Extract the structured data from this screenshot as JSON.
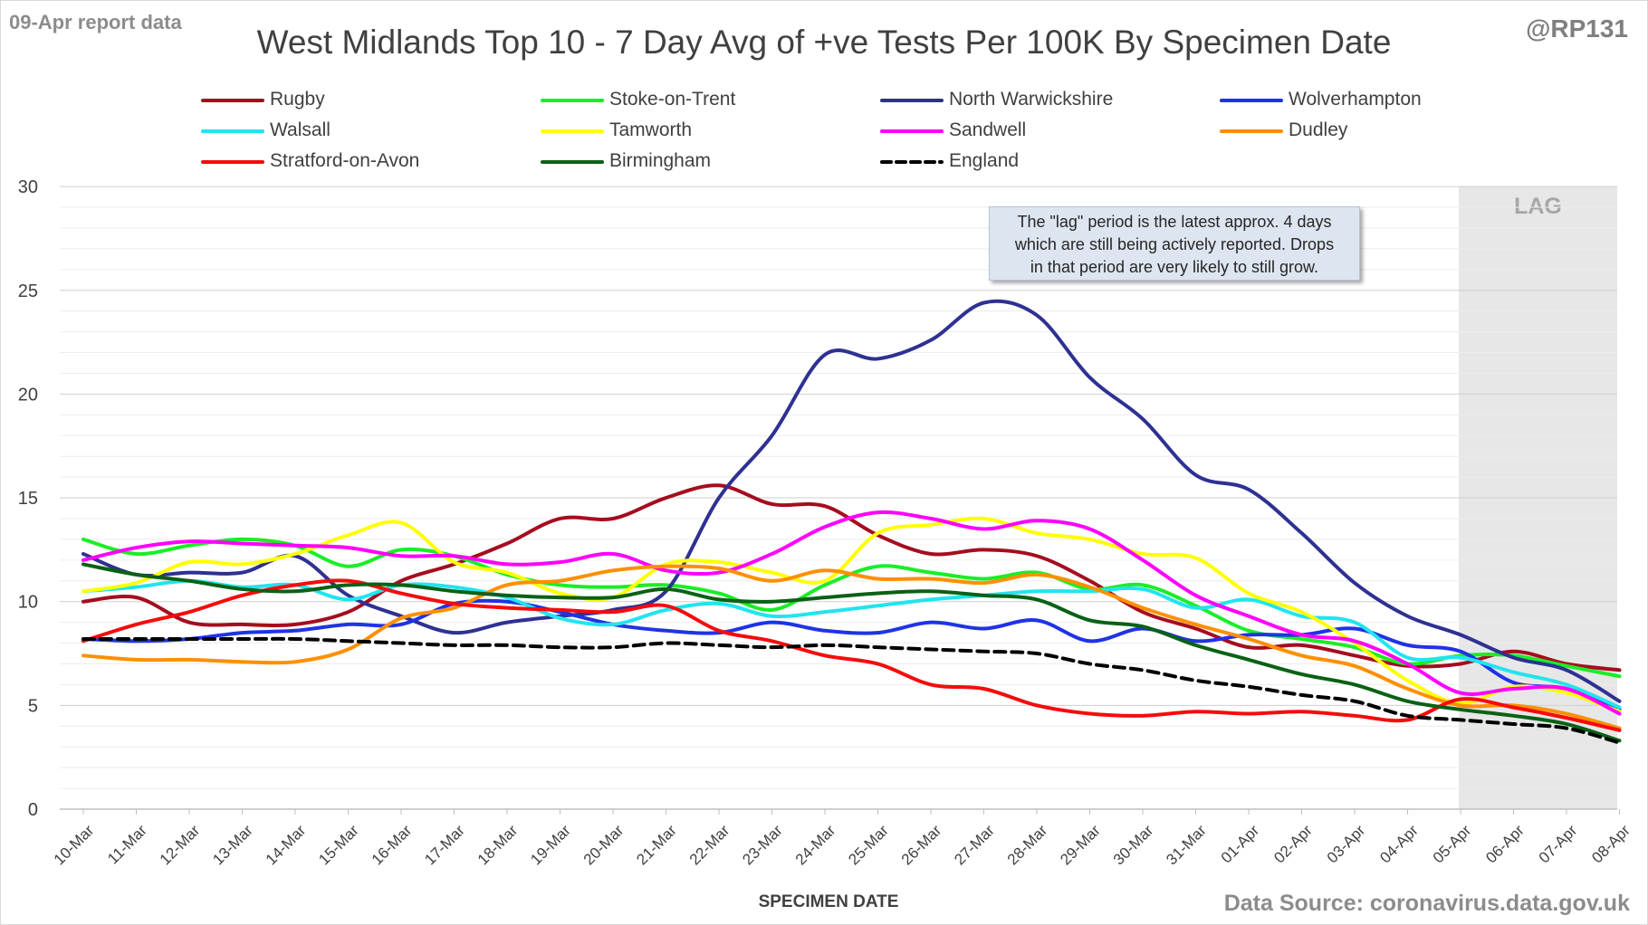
{
  "header": {
    "report_label": "09-Apr report data",
    "handle": "@RP131",
    "source": "Data Source: coronavirus.data.gov.uk"
  },
  "annotation": {
    "lines": [
      "The \"lag\" period is the latest approx. 4 days",
      "which are still being actively reported.  Drops",
      "in that period are very likely to still grow."
    ]
  },
  "colors": {
    "background": "#ffffff",
    "grid": "#d9d9d9",
    "lag_shade": "#e7e7e7",
    "lag_text": "#a6a6a6"
  },
  "chart_data": {
    "type": "line",
    "title": "West Midlands Top 10 - 7 Day Avg of +ve Tests Per 100K By Specimen Date",
    "xlabel": "SPECIMEN DATE",
    "ylabel": "",
    "ylim": [
      0,
      30
    ],
    "yticks": [
      0,
      5,
      10,
      15,
      20,
      25,
      30
    ],
    "grid": true,
    "legend_position": "top",
    "lag_label": "LAG",
    "lag_start": "05-Apr",
    "lag_end": "08-Apr",
    "categories": [
      "10-Mar",
      "11-Mar",
      "12-Mar",
      "13-Mar",
      "14-Mar",
      "15-Mar",
      "16-Mar",
      "17-Mar",
      "18-Mar",
      "19-Mar",
      "20-Mar",
      "21-Mar",
      "22-Mar",
      "23-Mar",
      "24-Mar",
      "25-Mar",
      "26-Mar",
      "27-Mar",
      "28-Mar",
      "29-Mar",
      "30-Mar",
      "31-Mar",
      "01-Apr",
      "02-Apr",
      "03-Apr",
      "04-Apr",
      "05-Apr",
      "06-Apr",
      "07-Apr",
      "08-Apr"
    ],
    "series": [
      {
        "name": "Rugby",
        "color": "#a50d1f",
        "dash": false,
        "values": [
          10.0,
          10.2,
          9.0,
          8.9,
          8.9,
          9.5,
          11.0,
          11.8,
          12.8,
          14.0,
          14.0,
          15.0,
          15.6,
          14.7,
          14.6,
          13.2,
          12.3,
          12.5,
          12.2,
          11.0,
          9.5,
          8.7,
          7.8,
          7.9,
          7.4,
          6.9,
          7.0,
          7.6,
          7.0,
          6.7
        ]
      },
      {
        "name": "Stoke-on-Trent",
        "color": "#19ee26",
        "dash": false,
        "values": [
          13.0,
          12.3,
          12.7,
          13.0,
          12.7,
          11.7,
          12.5,
          12.2,
          11.3,
          10.8,
          10.7,
          10.8,
          10.4,
          9.6,
          10.8,
          11.7,
          11.4,
          11.1,
          11.4,
          10.6,
          10.8,
          9.8,
          8.6,
          8.2,
          7.8,
          7.0,
          7.4,
          7.4,
          6.9,
          6.4
        ]
      },
      {
        "name": "North Warwickshire",
        "color": "#2e3192",
        "dash": false,
        "values": [
          12.3,
          11.3,
          11.4,
          11.4,
          12.2,
          10.3,
          9.3,
          8.5,
          9.0,
          9.3,
          9.6,
          10.5,
          15.0,
          18.0,
          21.9,
          21.7,
          22.6,
          24.4,
          23.8,
          20.8,
          18.8,
          16.1,
          15.4,
          13.3,
          10.9,
          9.3,
          8.4,
          7.3,
          6.7,
          5.2
        ]
      },
      {
        "name": "Wolverhampton",
        "color": "#1f33e6",
        "dash": false,
        "values": [
          8.2,
          8.1,
          8.2,
          8.5,
          8.6,
          8.9,
          8.9,
          9.9,
          10.0,
          9.5,
          8.9,
          8.6,
          8.5,
          9.0,
          8.6,
          8.5,
          9.0,
          8.7,
          9.1,
          8.1,
          8.7,
          8.1,
          8.4,
          8.4,
          8.7,
          7.9,
          7.6,
          6.1,
          5.8,
          4.8
        ]
      },
      {
        "name": "Walsall",
        "color": "#21e4ef",
        "dash": false,
        "values": [
          10.5,
          10.7,
          11.0,
          10.7,
          10.8,
          10.1,
          10.8,
          10.7,
          10.2,
          9.2,
          8.9,
          9.6,
          9.9,
          9.3,
          9.5,
          9.8,
          10.1,
          10.3,
          10.5,
          10.5,
          10.6,
          9.7,
          10.1,
          9.3,
          9.0,
          7.3,
          7.3,
          6.6,
          6.0,
          4.9
        ]
      },
      {
        "name": "Tamworth",
        "color": "#ffff00",
        "dash": false,
        "values": [
          10.5,
          10.9,
          11.9,
          11.8,
          12.3,
          13.2,
          13.8,
          11.9,
          11.4,
          10.4,
          10.2,
          11.8,
          11.9,
          11.4,
          11.0,
          13.3,
          13.7,
          14.0,
          13.3,
          13.0,
          12.3,
          12.1,
          10.4,
          9.5,
          8.0,
          6.2,
          5.1,
          5.9,
          5.6,
          4.7
        ]
      },
      {
        "name": "Sandwell",
        "color": "#ff00ff",
        "dash": false,
        "values": [
          12.0,
          12.6,
          12.9,
          12.8,
          12.7,
          12.6,
          12.2,
          12.2,
          11.8,
          11.9,
          12.3,
          11.5,
          11.4,
          12.3,
          13.6,
          14.3,
          14.0,
          13.5,
          13.9,
          13.5,
          12.0,
          10.3,
          9.3,
          8.4,
          8.1,
          7.0,
          5.6,
          5.8,
          5.8,
          4.6
        ]
      },
      {
        "name": "Dudley",
        "color": "#ff8f00",
        "dash": false,
        "values": [
          7.4,
          7.2,
          7.2,
          7.1,
          7.1,
          7.7,
          9.2,
          9.7,
          10.8,
          11.0,
          11.5,
          11.7,
          11.6,
          11.0,
          11.5,
          11.1,
          11.1,
          10.9,
          11.3,
          10.7,
          9.7,
          8.9,
          8.2,
          7.4,
          6.9,
          5.8,
          5.0,
          5.0,
          4.6,
          3.9
        ]
      },
      {
        "name": "Stratford-on-Avon",
        "color": "#f50c0c",
        "dash": false,
        "values": [
          8.1,
          8.9,
          9.5,
          10.3,
          10.8,
          11.0,
          10.4,
          9.9,
          9.7,
          9.6,
          9.5,
          9.8,
          8.6,
          8.1,
          7.4,
          7.0,
          6.0,
          5.8,
          5.0,
          4.6,
          4.5,
          4.7,
          4.6,
          4.7,
          4.5,
          4.3,
          5.3,
          4.9,
          4.4,
          3.8
        ]
      },
      {
        "name": "Birmingham",
        "color": "#0a6115",
        "dash": false,
        "values": [
          11.8,
          11.3,
          11.0,
          10.6,
          10.5,
          10.8,
          10.8,
          10.5,
          10.3,
          10.2,
          10.2,
          10.6,
          10.1,
          10.0,
          10.2,
          10.4,
          10.5,
          10.3,
          10.1,
          9.1,
          8.8,
          7.9,
          7.2,
          6.5,
          6.0,
          5.2,
          4.8,
          4.5,
          4.1,
          3.3
        ]
      },
      {
        "name": "England",
        "color": "#000000",
        "dash": true,
        "values": [
          8.2,
          8.2,
          8.2,
          8.2,
          8.2,
          8.1,
          8.0,
          7.9,
          7.9,
          7.8,
          7.8,
          8.0,
          7.9,
          7.8,
          7.9,
          7.8,
          7.7,
          7.6,
          7.5,
          7.0,
          6.7,
          6.2,
          5.9,
          5.5,
          5.2,
          4.5,
          4.3,
          4.1,
          3.9,
          3.2
        ]
      }
    ]
  }
}
